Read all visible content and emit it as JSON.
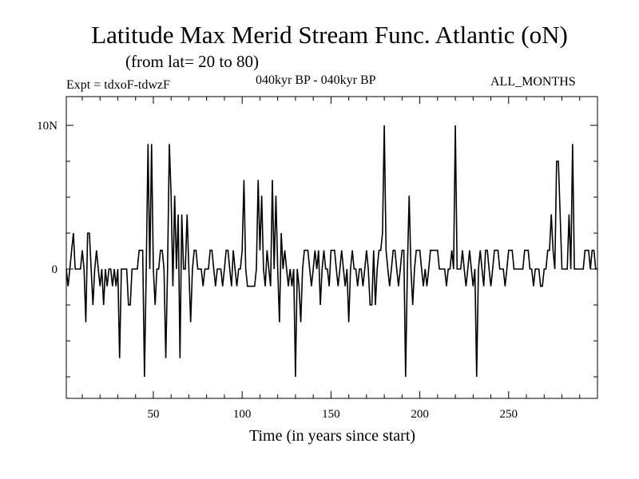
{
  "chart_data": {
    "type": "line",
    "title": "Latitude Max Merid Stream Func. Atlantic (oN)",
    "subtitle": "(from lat= 20 to 80)",
    "expt_label": "Expt = tdxoF-tdwzF",
    "period_label": "040kyr BP - 040kyr BP",
    "months_label": "ALL_MONTHS",
    "xlabel": "Time (in years since start)",
    "ylabel": "",
    "xlim": [
      1,
      300
    ],
    "ylim": [
      -9,
      12
    ],
    "xticks": [
      50,
      100,
      150,
      200,
      250
    ],
    "yticks": [
      {
        "value": 0,
        "label": "0"
      },
      {
        "value": 10,
        "label": "10N"
      }
    ],
    "series": [
      {
        "values": [
          [
            1,
            0
          ],
          [
            2,
            -1.2
          ],
          [
            3,
            0
          ],
          [
            4,
            1.3
          ],
          [
            5,
            2.5
          ],
          [
            6,
            0
          ],
          [
            7,
            0
          ],
          [
            8,
            0
          ],
          [
            9,
            0
          ],
          [
            10,
            1.3
          ],
          [
            11,
            0
          ],
          [
            12,
            -3.7
          ],
          [
            13,
            2.5
          ],
          [
            14,
            2.5
          ],
          [
            15,
            0
          ],
          [
            16,
            -2.5
          ],
          [
            17,
            0
          ],
          [
            18,
            1.3
          ],
          [
            19,
            0
          ],
          [
            20,
            -1.2
          ],
          [
            21,
            0
          ],
          [
            22,
            -2.5
          ],
          [
            23,
            0
          ],
          [
            24,
            -1.2
          ],
          [
            25,
            0
          ],
          [
            26,
            0
          ],
          [
            27,
            -1.2
          ],
          [
            28,
            0
          ],
          [
            29,
            -1.2
          ],
          [
            30,
            0
          ],
          [
            31,
            -6.2
          ],
          [
            32,
            0
          ],
          [
            33,
            0
          ],
          [
            34,
            0
          ],
          [
            35,
            0
          ],
          [
            36,
            -2.5
          ],
          [
            37,
            -2.5
          ],
          [
            38,
            0
          ],
          [
            39,
            0
          ],
          [
            40,
            0
          ],
          [
            41,
            0
          ],
          [
            42,
            1.3
          ],
          [
            43,
            1.3
          ],
          [
            44,
            1.3
          ],
          [
            45,
            -7.5
          ],
          [
            46,
            0
          ],
          [
            47,
            8.7
          ],
          [
            48,
            0
          ],
          [
            49,
            8.7
          ],
          [
            50,
            0
          ],
          [
            51,
            -2.5
          ],
          [
            52,
            0
          ],
          [
            53,
            0
          ],
          [
            54,
            1.3
          ],
          [
            55,
            1.3
          ],
          [
            56,
            0
          ],
          [
            57,
            -6.2
          ],
          [
            58,
            0
          ],
          [
            59,
            8.7
          ],
          [
            60,
            5.1
          ],
          [
            61,
            -1.2
          ],
          [
            62,
            5.1
          ],
          [
            63,
            0
          ],
          [
            64,
            3.8
          ],
          [
            65,
            -6.2
          ],
          [
            66,
            3.8
          ],
          [
            67,
            0
          ],
          [
            68,
            0
          ],
          [
            69,
            3.8
          ],
          [
            70,
            0
          ],
          [
            71,
            -3.7
          ],
          [
            72,
            0
          ],
          [
            73,
            1.3
          ],
          [
            74,
            1.3
          ],
          [
            75,
            0
          ],
          [
            76,
            0
          ],
          [
            77,
            0
          ],
          [
            78,
            -1.2
          ],
          [
            79,
            0
          ],
          [
            80,
            0
          ],
          [
            81,
            0
          ],
          [
            82,
            1.3
          ],
          [
            83,
            1.3
          ],
          [
            84,
            0
          ],
          [
            85,
            -1.2
          ],
          [
            86,
            0
          ],
          [
            87,
            0
          ],
          [
            88,
            0
          ],
          [
            89,
            -1.2
          ],
          [
            90,
            0
          ],
          [
            91,
            1.3
          ],
          [
            92,
            1.3
          ],
          [
            93,
            0
          ],
          [
            94,
            -1.2
          ],
          [
            95,
            1.3
          ],
          [
            96,
            0
          ],
          [
            97,
            -1.2
          ],
          [
            98,
            0
          ],
          [
            99,
            0
          ],
          [
            100,
            1.3
          ],
          [
            101,
            6.2
          ],
          [
            102,
            0
          ],
          [
            103,
            -1.2
          ],
          [
            104,
            -1.2
          ],
          [
            105,
            -1.2
          ],
          [
            106,
            -1.2
          ],
          [
            107,
            -1.2
          ],
          [
            108,
            0
          ],
          [
            109,
            6.2
          ],
          [
            110,
            1.3
          ],
          [
            111,
            5.1
          ],
          [
            112,
            0
          ],
          [
            113,
            -1.2
          ],
          [
            114,
            1.3
          ],
          [
            115,
            0
          ],
          [
            116,
            -1.2
          ],
          [
            117,
            6.2
          ],
          [
            118,
            0
          ],
          [
            119,
            5.1
          ],
          [
            120,
            0
          ],
          [
            121,
            -3.7
          ],
          [
            122,
            2.5
          ],
          [
            123,
            0
          ],
          [
            124,
            1.3
          ],
          [
            125,
            0
          ],
          [
            126,
            -1.2
          ],
          [
            127,
            0
          ],
          [
            128,
            -1.2
          ],
          [
            129,
            0
          ],
          [
            130,
            -7.5
          ],
          [
            131,
            0
          ],
          [
            132,
            -1.2
          ],
          [
            133,
            -3.7
          ],
          [
            134,
            0
          ],
          [
            135,
            1.3
          ],
          [
            136,
            1.3
          ],
          [
            137,
            1.3
          ],
          [
            138,
            0
          ],
          [
            139,
            -1.2
          ],
          [
            140,
            0
          ],
          [
            141,
            1.3
          ],
          [
            142,
            0
          ],
          [
            143,
            1.3
          ],
          [
            144,
            -2.5
          ],
          [
            145,
            0
          ],
          [
            146,
            1.3
          ],
          [
            147,
            0
          ],
          [
            148,
            0
          ],
          [
            149,
            -1.2
          ],
          [
            150,
            1.3
          ],
          [
            151,
            1.3
          ],
          [
            152,
            1.3
          ],
          [
            153,
            0
          ],
          [
            154,
            -1.2
          ],
          [
            155,
            0
          ],
          [
            156,
            1.3
          ],
          [
            157,
            0
          ],
          [
            158,
            -1.2
          ],
          [
            159,
            0
          ],
          [
            160,
            -3.7
          ],
          [
            161,
            0
          ],
          [
            162,
            1.3
          ],
          [
            163,
            0
          ],
          [
            164,
            0
          ],
          [
            165,
            -1.2
          ],
          [
            166,
            0
          ],
          [
            167,
            0
          ],
          [
            168,
            -1.2
          ],
          [
            169,
            0
          ],
          [
            170,
            1.3
          ],
          [
            171,
            0
          ],
          [
            172,
            -2.5
          ],
          [
            173,
            -2.5
          ],
          [
            174,
            1.3
          ],
          [
            175,
            -2.5
          ],
          [
            176,
            0
          ],
          [
            177,
            1.3
          ],
          [
            178,
            1.3
          ],
          [
            179,
            2.5
          ],
          [
            180,
            10
          ],
          [
            181,
            1.3
          ],
          [
            182,
            0
          ],
          [
            183,
            -1.2
          ],
          [
            184,
            0
          ],
          [
            185,
            1.3
          ],
          [
            186,
            1.3
          ],
          [
            187,
            0
          ],
          [
            188,
            -1.2
          ],
          [
            189,
            0
          ],
          [
            190,
            1.3
          ],
          [
            191,
            1.3
          ],
          [
            192,
            -7.5
          ],
          [
            193,
            0
          ],
          [
            194,
            5.1
          ],
          [
            195,
            0
          ],
          [
            196,
            -2.5
          ],
          [
            197,
            0
          ],
          [
            198,
            1.3
          ],
          [
            199,
            1.3
          ],
          [
            200,
            1.3
          ],
          [
            201,
            0
          ],
          [
            202,
            -1.2
          ],
          [
            203,
            0
          ],
          [
            204,
            -1.2
          ],
          [
            205,
            0
          ],
          [
            206,
            1.3
          ],
          [
            207,
            1.3
          ],
          [
            208,
            1.3
          ],
          [
            209,
            1.3
          ],
          [
            210,
            1.3
          ],
          [
            211,
            0
          ],
          [
            212,
            0
          ],
          [
            213,
            0
          ],
          [
            214,
            0
          ],
          [
            215,
            -1.2
          ],
          [
            216,
            0
          ],
          [
            217,
            0
          ],
          [
            218,
            1.3
          ],
          [
            219,
            0
          ],
          [
            220,
            10
          ],
          [
            221,
            0
          ],
          [
            222,
            0
          ],
          [
            223,
            0
          ],
          [
            224,
            1.3
          ],
          [
            225,
            0
          ],
          [
            226,
            -1.2
          ],
          [
            227,
            0
          ],
          [
            228,
            1.3
          ],
          [
            229,
            0
          ],
          [
            230,
            -1.2
          ],
          [
            231,
            0
          ],
          [
            232,
            -7.5
          ],
          [
            233,
            0
          ],
          [
            234,
            1.3
          ],
          [
            235,
            0
          ],
          [
            236,
            -1.2
          ],
          [
            237,
            1.3
          ],
          [
            238,
            1.3
          ],
          [
            239,
            0
          ],
          [
            240,
            -1.2
          ],
          [
            241,
            0
          ],
          [
            242,
            1.3
          ],
          [
            243,
            1.3
          ],
          [
            244,
            1.3
          ],
          [
            245,
            0
          ],
          [
            246,
            0
          ],
          [
            247,
            0
          ],
          [
            248,
            -1.2
          ],
          [
            249,
            0
          ],
          [
            250,
            1.3
          ],
          [
            251,
            1.3
          ],
          [
            252,
            1.3
          ],
          [
            253,
            0
          ],
          [
            254,
            0
          ],
          [
            255,
            0
          ],
          [
            256,
            0
          ],
          [
            257,
            0
          ],
          [
            258,
            0
          ],
          [
            259,
            1.3
          ],
          [
            260,
            1.3
          ],
          [
            261,
            1.3
          ],
          [
            262,
            0
          ],
          [
            263,
            0
          ],
          [
            264,
            -1.2
          ],
          [
            265,
            0
          ],
          [
            266,
            0
          ],
          [
            267,
            0
          ],
          [
            268,
            -1.2
          ],
          [
            269,
            -1.2
          ],
          [
            270,
            0
          ],
          [
            271,
            0
          ],
          [
            272,
            1.3
          ],
          [
            273,
            1.3
          ],
          [
            274,
            3.8
          ],
          [
            275,
            1.3
          ],
          [
            276,
            0
          ],
          [
            277,
            7.5
          ],
          [
            278,
            7.5
          ],
          [
            279,
            3.8
          ],
          [
            280,
            0
          ],
          [
            281,
            0
          ],
          [
            282,
            0
          ],
          [
            283,
            0
          ],
          [
            284,
            3.8
          ],
          [
            285,
            0
          ],
          [
            286,
            8.7
          ],
          [
            287,
            0
          ],
          [
            288,
            0
          ],
          [
            289,
            0
          ],
          [
            290,
            0
          ],
          [
            291,
            0
          ],
          [
            292,
            0
          ],
          [
            293,
            1.3
          ],
          [
            294,
            1.3
          ],
          [
            295,
            1.3
          ],
          [
            296,
            0
          ],
          [
            297,
            1.3
          ],
          [
            298,
            1.3
          ],
          [
            299,
            0
          ],
          [
            300,
            0
          ]
        ],
        "color": "#000000"
      }
    ],
    "grid": false,
    "ticks_on_all_sides": true
  }
}
